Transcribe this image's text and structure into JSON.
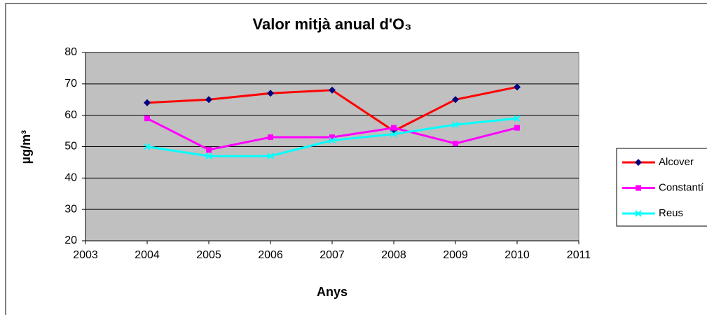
{
  "chart_data": {
    "type": "line",
    "title": "Valor mitjà anual d'O₃",
    "x_label": "Anys",
    "y_label": "µg/m³",
    "x": [
      2004,
      2005,
      2006,
      2007,
      2008,
      2009,
      2010
    ],
    "xlim": [
      2003,
      2011
    ],
    "xticks": [
      2003,
      2004,
      2005,
      2006,
      2007,
      2008,
      2009,
      2010,
      2011
    ],
    "ylim": [
      20,
      80
    ],
    "yticks": [
      20,
      30,
      40,
      50,
      60,
      70,
      80
    ],
    "grid": true,
    "legend": "right",
    "series": [
      {
        "name": "Alcover",
        "color": "#ff0000",
        "marker": "diamond",
        "marker_color": "#000080",
        "values": [
          64,
          65,
          67,
          68,
          55,
          65,
          69
        ]
      },
      {
        "name": "Constantí",
        "color": "#ff00ff",
        "marker": "square",
        "marker_color": "#ff00ff",
        "values": [
          59,
          49,
          53,
          53,
          56,
          51,
          56
        ]
      },
      {
        "name": "Reus",
        "color": "#00ffff",
        "marker": "x",
        "marker_color": "#00ffff",
        "values": [
          50,
          47,
          47,
          52,
          54,
          57,
          59
        ]
      }
    ]
  }
}
